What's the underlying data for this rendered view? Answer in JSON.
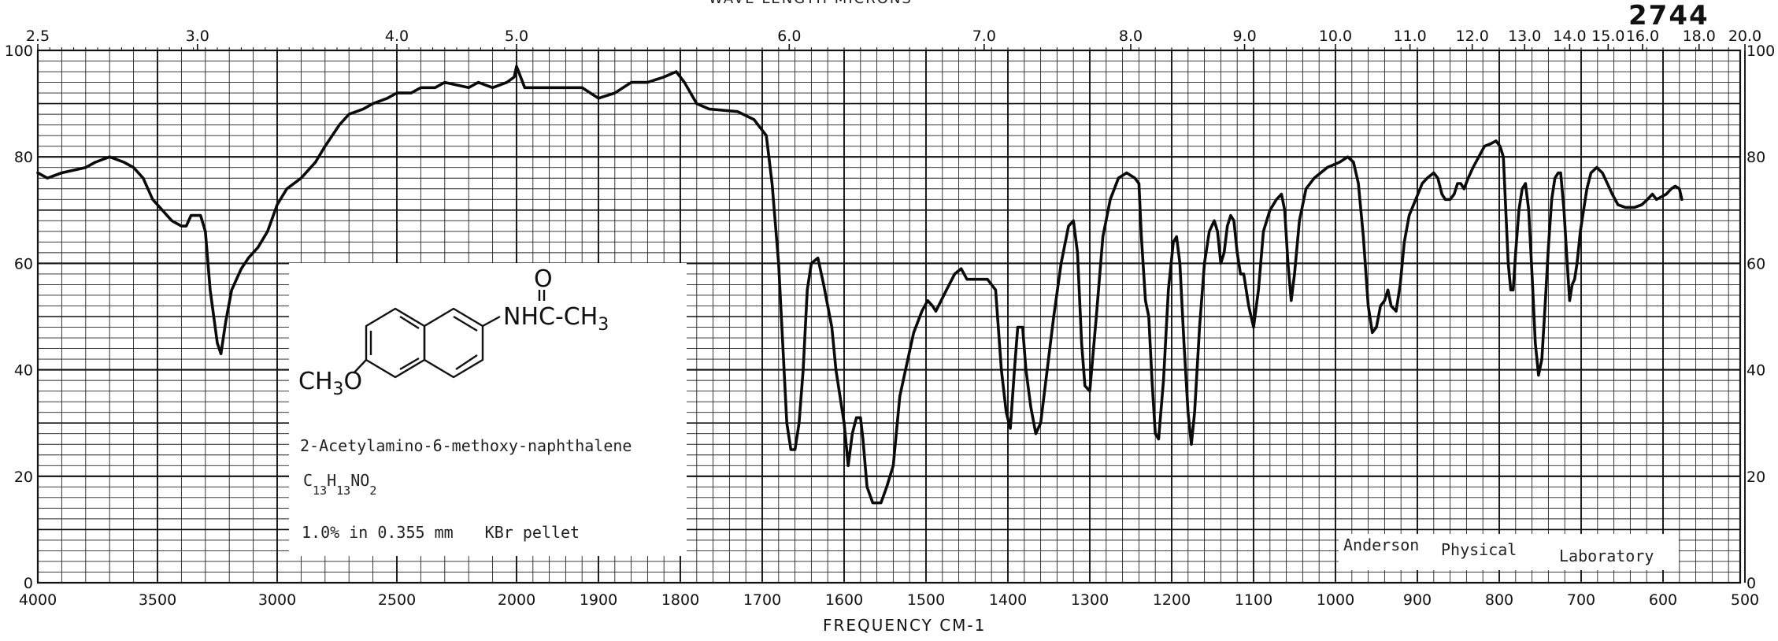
{
  "header": {
    "spectrum_number": "2744",
    "wavelength_title": "WAVE LENGTH   MICRONS"
  },
  "compound": {
    "name": "2-Acetylamino-6-methoxy-naphthalene",
    "formula": {
      "c": "C",
      "c_n": "13",
      "h": "H",
      "h_n": "13",
      "rest": "NO",
      "o_n": "2"
    },
    "conditions_a": "1.0% in 0.355 mm",
    "conditions_b": "KBr pellet",
    "structure_labels": {
      "amide": "NHC-CH",
      "amide_sub": "3",
      "carbonyl_o": "O",
      "methoxy": "CH",
      "methoxy_sub": "3",
      "methoxy_o": "O"
    }
  },
  "lab": {
    "w1": "Anderson",
    "w2": "Physical",
    "w3": "Laboratory"
  },
  "chart_data": {
    "type": "line",
    "xlabel": "FREQUENCY   CM-1",
    "ylabel": "",
    "y_range": [
      0,
      100
    ],
    "x_range_cm1": [
      4000,
      500
    ],
    "x_scale": "piecewise linear wavenumber (4000-2000 at 500 cm-1 per major division, 2000-500 at 100 cm-1 per division)",
    "grid": true,
    "bottom_ticks": [
      "4000",
      "3500",
      "3000",
      "2500",
      "2000",
      "1900",
      "1800",
      "1700",
      "1600",
      "1500",
      "1400",
      "1300",
      "1200",
      "1100",
      "1000",
      "900",
      "800",
      "700",
      "600",
      "500"
    ],
    "top_ticks": [
      {
        "label": "2.5",
        "cm1": 4000
      },
      {
        "label": "3.0",
        "cm1": 3333
      },
      {
        "label": "4.0",
        "cm1": 2500
      },
      {
        "label": "5.0",
        "cm1": 2000
      },
      {
        "label": "6.0",
        "cm1": 1667
      },
      {
        "label": "7.0",
        "cm1": 1429
      },
      {
        "label": "8.0",
        "cm1": 1250
      },
      {
        "label": "9.0",
        "cm1": 1111
      },
      {
        "label": "10.0",
        "cm1": 1000
      },
      {
        "label": "11.0",
        "cm1": 909
      },
      {
        "label": "12.0",
        "cm1": 833
      },
      {
        "label": "13.0",
        "cm1": 769
      },
      {
        "label": "14.0",
        "cm1": 714
      },
      {
        "label": "15.0",
        "cm1": 667
      },
      {
        "label": "16.0",
        "cm1": 625
      },
      {
        "label": "18.0",
        "cm1": 556
      },
      {
        "label": "20.0",
        "cm1": 500
      }
    ],
    "left_ticks": [
      "0",
      "20",
      "40",
      "60",
      "80",
      "100"
    ],
    "right_ticks": [
      "0",
      "20",
      "40",
      "60",
      "80",
      "100"
    ],
    "series": [
      {
        "points": [
          [
            4000,
            77
          ],
          [
            3960,
            76
          ],
          [
            3900,
            77
          ],
          [
            3800,
            78
          ],
          [
            3760,
            79
          ],
          [
            3700,
            80
          ],
          [
            3640,
            79
          ],
          [
            3600,
            78
          ],
          [
            3560,
            76
          ],
          [
            3520,
            72
          ],
          [
            3480,
            70
          ],
          [
            3440,
            68
          ],
          [
            3400,
            67
          ],
          [
            3380,
            67
          ],
          [
            3360,
            69
          ],
          [
            3320,
            69
          ],
          [
            3300,
            66
          ],
          [
            3280,
            55
          ],
          [
            3250,
            45
          ],
          [
            3235,
            43
          ],
          [
            3215,
            49
          ],
          [
            3190,
            55
          ],
          [
            3150,
            59
          ],
          [
            3120,
            61
          ],
          [
            3080,
            63
          ],
          [
            3040,
            66
          ],
          [
            3000,
            71
          ],
          [
            2960,
            74
          ],
          [
            2900,
            76
          ],
          [
            2840,
            79
          ],
          [
            2800,
            82
          ],
          [
            2740,
            86
          ],
          [
            2700,
            88
          ],
          [
            2640,
            89
          ],
          [
            2600,
            90
          ],
          [
            2540,
            91
          ],
          [
            2500,
            92
          ],
          [
            2440,
            92
          ],
          [
            2400,
            93
          ],
          [
            2340,
            93
          ],
          [
            2300,
            94
          ],
          [
            2200,
            93
          ],
          [
            2160,
            94
          ],
          [
            2100,
            93
          ],
          [
            2040,
            94
          ],
          [
            2010,
            95
          ],
          [
            2000,
            97
          ],
          [
            1990,
            93
          ],
          [
            1960,
            93
          ],
          [
            1920,
            93
          ],
          [
            1900,
            91
          ],
          [
            1880,
            92
          ],
          [
            1860,
            94
          ],
          [
            1840,
            94
          ],
          [
            1820,
            95
          ],
          [
            1805,
            96
          ],
          [
            1795,
            94
          ],
          [
            1780,
            90
          ],
          [
            1765,
            89
          ],
          [
            1730,
            88.5
          ],
          [
            1710,
            87
          ],
          [
            1695,
            84
          ],
          [
            1688,
            75
          ],
          [
            1680,
            60
          ],
          [
            1675,
            45
          ],
          [
            1670,
            30
          ],
          [
            1665,
            25
          ],
          [
            1660,
            25
          ],
          [
            1655,
            30
          ],
          [
            1650,
            40
          ],
          [
            1645,
            55
          ],
          [
            1640,
            60
          ],
          [
            1632,
            61
          ],
          [
            1625,
            56
          ],
          [
            1620,
            52
          ],
          [
            1615,
            48
          ],
          [
            1610,
            40
          ],
          [
            1600,
            30
          ],
          [
            1595,
            22
          ],
          [
            1590,
            28
          ],
          [
            1585,
            31
          ],
          [
            1580,
            31
          ],
          [
            1577,
            27
          ],
          [
            1572,
            18
          ],
          [
            1565,
            15
          ],
          [
            1555,
            15
          ],
          [
            1548,
            18
          ],
          [
            1540,
            22
          ],
          [
            1532,
            35
          ],
          [
            1525,
            40
          ],
          [
            1515,
            47
          ],
          [
            1505,
            51
          ],
          [
            1498,
            53
          ],
          [
            1492,
            52
          ],
          [
            1488,
            51
          ],
          [
            1475,
            55
          ],
          [
            1465,
            58
          ],
          [
            1457,
            59
          ],
          [
            1450,
            57
          ],
          [
            1440,
            57
          ],
          [
            1425,
            57
          ],
          [
            1415,
            55
          ],
          [
            1408,
            40
          ],
          [
            1402,
            32
          ],
          [
            1397,
            29
          ],
          [
            1392,
            40
          ],
          [
            1388,
            48
          ],
          [
            1382,
            48
          ],
          [
            1378,
            40
          ],
          [
            1372,
            33
          ],
          [
            1366,
            28
          ],
          [
            1360,
            30
          ],
          [
            1352,
            40
          ],
          [
            1344,
            50
          ],
          [
            1335,
            60
          ],
          [
            1326,
            67
          ],
          [
            1320,
            68
          ],
          [
            1315,
            62
          ],
          [
            1310,
            45
          ],
          [
            1306,
            37
          ],
          [
            1300,
            36
          ],
          [
            1292,
            50
          ],
          [
            1284,
            65
          ],
          [
            1275,
            72
          ],
          [
            1265,
            76
          ],
          [
            1255,
            77
          ],
          [
            1245,
            76
          ],
          [
            1240,
            75
          ],
          [
            1237,
            65
          ],
          [
            1232,
            53
          ],
          [
            1228,
            50
          ],
          [
            1224,
            38
          ],
          [
            1220,
            28
          ],
          [
            1216,
            27
          ],
          [
            1210,
            38
          ],
          [
            1204,
            55
          ],
          [
            1198,
            64
          ],
          [
            1194,
            65
          ],
          [
            1190,
            60
          ],
          [
            1185,
            45
          ],
          [
            1180,
            32
          ],
          [
            1176,
            26
          ],
          [
            1172,
            32
          ],
          [
            1166,
            48
          ],
          [
            1160,
            60
          ],
          [
            1154,
            66
          ],
          [
            1148,
            68
          ],
          [
            1144,
            66
          ],
          [
            1140,
            60
          ],
          [
            1136,
            62
          ],
          [
            1132,
            67
          ],
          [
            1128,
            69
          ],
          [
            1124,
            68
          ],
          [
            1120,
            62
          ],
          [
            1116,
            58
          ],
          [
            1112,
            58
          ],
          [
            1106,
            52
          ],
          [
            1100,
            48
          ],
          [
            1094,
            55
          ],
          [
            1088,
            66
          ],
          [
            1080,
            70
          ],
          [
            1072,
            72
          ],
          [
            1066,
            73
          ],
          [
            1062,
            70
          ],
          [
            1058,
            60
          ],
          [
            1054,
            53
          ],
          [
            1050,
            58
          ],
          [
            1044,
            68
          ],
          [
            1036,
            74
          ],
          [
            1026,
            76
          ],
          [
            1010,
            78
          ],
          [
            995,
            79
          ],
          [
            985,
            80
          ],
          [
            978,
            79
          ],
          [
            972,
            75
          ],
          [
            966,
            65
          ],
          [
            960,
            52
          ],
          [
            955,
            47
          ],
          [
            950,
            48
          ],
          [
            945,
            52
          ],
          [
            940,
            53
          ],
          [
            936,
            55
          ],
          [
            932,
            52
          ],
          [
            926,
            51
          ],
          [
            921,
            56
          ],
          [
            916,
            64
          ],
          [
            910,
            69
          ],
          [
            902,
            72
          ],
          [
            894,
            75
          ],
          [
            888,
            76
          ],
          [
            880,
            77
          ],
          [
            875,
            76
          ],
          [
            870,
            73
          ],
          [
            866,
            72
          ],
          [
            860,
            72
          ],
          [
            855,
            73
          ],
          [
            851,
            75
          ],
          [
            847,
            75
          ],
          [
            843,
            74
          ],
          [
            838,
            76
          ],
          [
            832,
            78
          ],
          [
            825,
            80
          ],
          [
            818,
            82
          ],
          [
            810,
            82.5
          ],
          [
            804,
            83
          ],
          [
            799,
            82
          ],
          [
            795,
            80
          ],
          [
            792,
            70
          ],
          [
            789,
            60
          ],
          [
            786,
            55
          ],
          [
            783,
            55
          ],
          [
            780,
            62
          ],
          [
            776,
            70
          ],
          [
            772,
            74
          ],
          [
            768,
            75
          ],
          [
            764,
            70
          ],
          [
            760,
            58
          ],
          [
            756,
            45
          ],
          [
            752,
            39
          ],
          [
            748,
            42
          ],
          [
            744,
            52
          ],
          [
            740,
            63
          ],
          [
            736,
            72
          ],
          [
            732,
            76
          ],
          [
            728,
            77
          ],
          [
            725,
            77
          ],
          [
            721,
            70
          ],
          [
            717,
            60
          ],
          [
            714,
            53
          ],
          [
            711,
            56
          ],
          [
            708,
            57
          ],
          [
            705,
            60
          ],
          [
            701,
            66
          ],
          [
            697,
            70
          ],
          [
            693,
            74
          ],
          [
            688,
            77
          ],
          [
            681,
            78
          ],
          [
            674,
            77
          ],
          [
            668,
            75
          ],
          [
            662,
            73
          ],
          [
            655,
            71
          ],
          [
            646,
            70.5
          ],
          [
            635,
            70.5
          ],
          [
            626,
            71
          ],
          [
            619,
            72
          ],
          [
            613,
            73
          ],
          [
            608,
            72
          ],
          [
            602,
            72.5
          ],
          [
            596,
            73
          ],
          [
            590,
            74
          ],
          [
            585,
            74.5
          ],
          [
            580,
            74
          ],
          [
            577,
            72
          ]
        ]
      }
    ]
  }
}
